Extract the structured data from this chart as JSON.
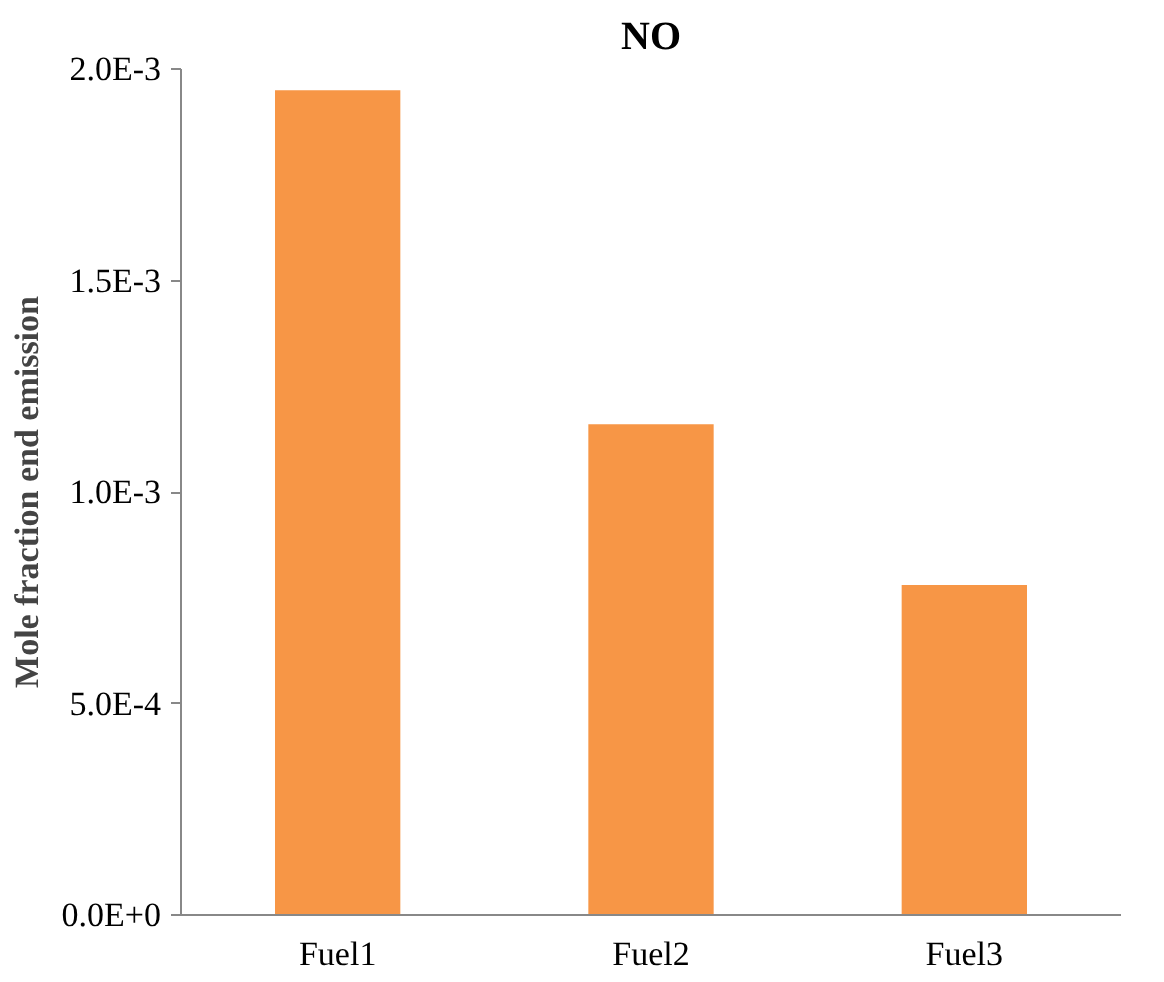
{
  "chart_data": {
    "type": "bar",
    "title": "NO",
    "ylabel": "Mole fraction end emission",
    "categories": [
      "Fuel1",
      "Fuel2",
      "Fuel3"
    ],
    "values": [
      0.00195,
      0.00116,
      0.00078
    ],
    "color": "#f79646",
    "ylim": [
      0,
      0.002
    ],
    "yticks": [
      {
        "value": 0,
        "label": "0.0E+0"
      },
      {
        "value": 0.0005,
        "label": "5.0E-4"
      },
      {
        "value": 0.001,
        "label": "1.0E-3"
      },
      {
        "value": 0.0015,
        "label": "1.5E-3"
      },
      {
        "value": 0.002,
        "label": "2.0E-3"
      }
    ],
    "grid": false
  }
}
